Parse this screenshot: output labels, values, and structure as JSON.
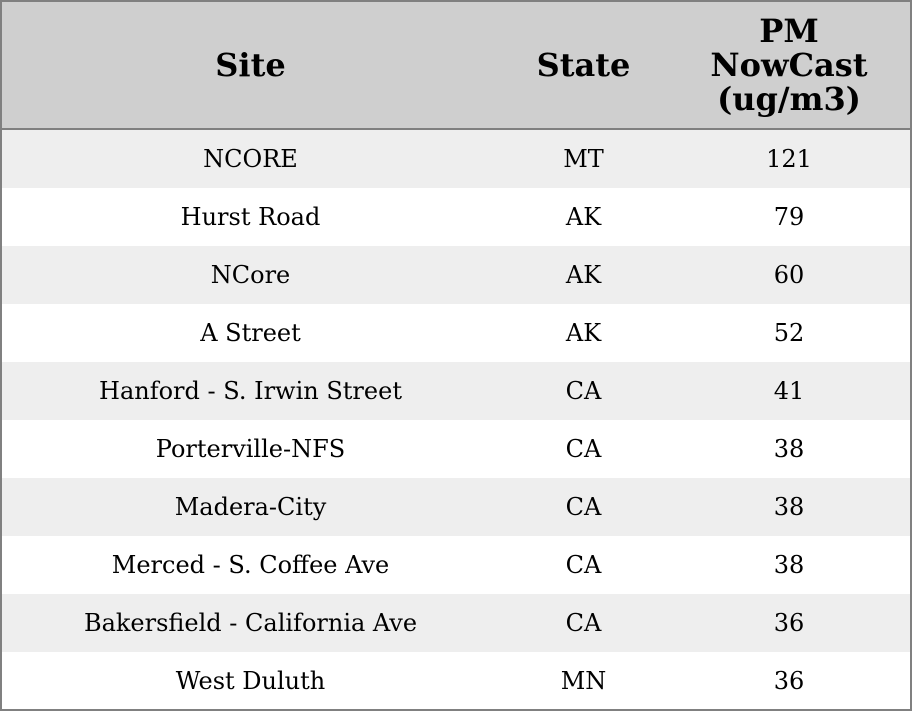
{
  "table": {
    "header": [
      "Site",
      "State",
      "PM NowCast (ug/m3)"
    ],
    "rows": [
      [
        "NCORE",
        "MT",
        121
      ],
      [
        "Hurst Road",
        "AK",
        79
      ],
      [
        "NCore",
        "AK",
        60
      ],
      [
        "A Street",
        "AK",
        52
      ],
      [
        "Hanford - S. Irwin Street",
        "CA",
        41
      ],
      [
        "Porterville-NFS",
        "CA",
        38
      ],
      [
        "Madera-City",
        "CA",
        38
      ],
      [
        "Merced - S. Coffee Ave",
        "CA",
        38
      ],
      [
        "Bakersfield - California Ave",
        "CA",
        36
      ],
      [
        "West Duluth",
        "MN",
        36
      ]
    ]
  }
}
